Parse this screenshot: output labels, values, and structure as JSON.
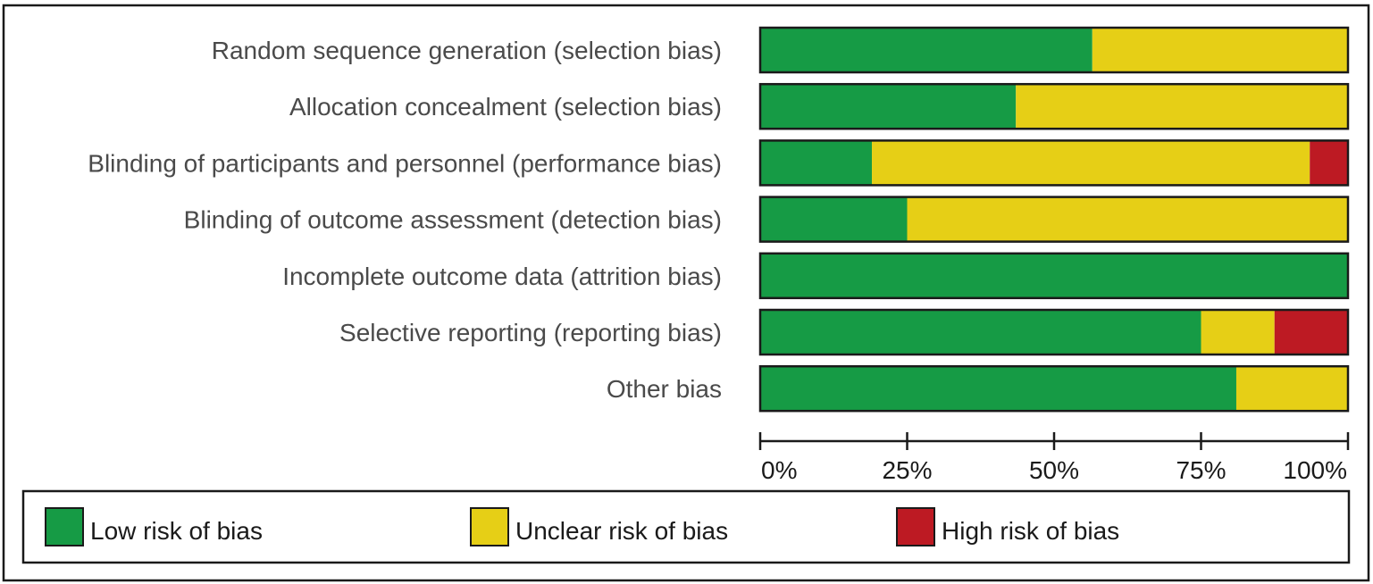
{
  "chart_data": {
    "type": "bar",
    "orientation": "horizontal",
    "stacked": true,
    "title": "",
    "xlabel": "",
    "ylabel": "",
    "xlim": [
      0,
      100
    ],
    "x_ticks": [
      "0%",
      "25%",
      "50%",
      "75%",
      "100%"
    ],
    "x_tick_values": [
      0,
      25,
      50,
      75,
      100
    ],
    "grid": false,
    "legend_position": "bottom",
    "categories": [
      "Random sequence generation (selection bias)",
      "Allocation concealment (selection bias)",
      "Blinding of participants and personnel (performance bias)",
      "Blinding of outcome assessment (detection bias)",
      "Incomplete outcome data (attrition bias)",
      "Selective reporting (reporting bias)",
      "Other bias"
    ],
    "series": [
      {
        "name": "Low risk of bias",
        "color": "#169b45",
        "values": [
          56.5,
          43.5,
          19,
          25,
          100,
          75,
          81
        ]
      },
      {
        "name": "Unclear risk of bias",
        "color": "#e6cf16",
        "values": [
          43.5,
          56.5,
          74.5,
          75,
          0,
          12.5,
          19
        ]
      },
      {
        "name": "High risk of bias",
        "color": "#bd1a23",
        "values": [
          0,
          0,
          6.5,
          0,
          0,
          12.5,
          0
        ]
      }
    ]
  }
}
